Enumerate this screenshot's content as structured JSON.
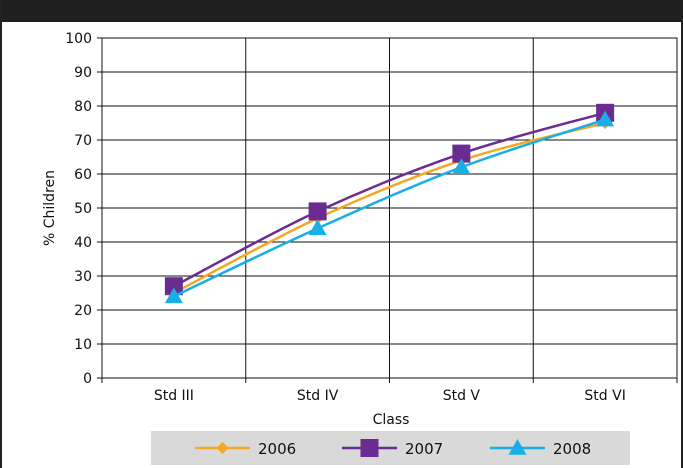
{
  "chart_data": {
    "type": "line",
    "title": "",
    "xlabel": "Class",
    "ylabel": "% Children",
    "categories": [
      "Std III",
      "Std IV",
      "Std V",
      "Std VI"
    ],
    "ylim": [
      0,
      100
    ],
    "yticks": [
      0,
      10,
      20,
      30,
      40,
      50,
      60,
      70,
      80,
      90,
      100
    ],
    "grid": true,
    "legend_position": "bottom",
    "series": [
      {
        "name": "2006",
        "values": [
          25,
          47,
          64,
          75
        ],
        "color": "#f5a623",
        "marker": "diamond"
      },
      {
        "name": "2007",
        "values": [
          27,
          49,
          66,
          78
        ],
        "color": "#6b2c91",
        "marker": "square"
      },
      {
        "name": "2008",
        "values": [
          24,
          44,
          62,
          76
        ],
        "color": "#19aee6",
        "marker": "triangle"
      }
    ]
  }
}
